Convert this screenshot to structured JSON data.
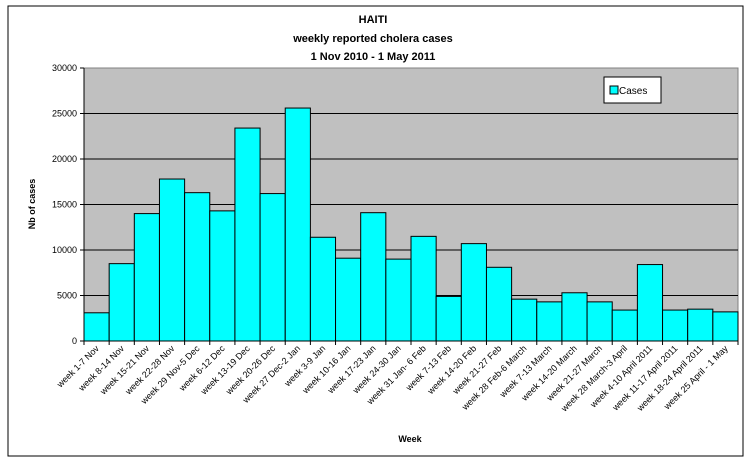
{
  "chart_data": {
    "type": "bar",
    "title": [
      "HAITI",
      "weekly reported cholera cases",
      "1 Nov 2010 - 1 May 2011"
    ],
    "xlabel": "Week",
    "ylabel": "Nb of cases",
    "ylim": [
      0,
      30000
    ],
    "yticks": [
      0,
      5000,
      10000,
      15000,
      20000,
      25000,
      30000
    ],
    "grid": true,
    "plot_background": "#c0c0c0",
    "bar_color": "#00ffff",
    "legend_position": "top-right",
    "categories": [
      "week 1-7 Nov",
      "week 8-14 Nov",
      "week 15-21 Nov",
      "week 22-28 Nov",
      "week 29 Nov-5 Dec",
      "week 6-12 Dec",
      "week 13-19 Dec",
      "week 20-26 Dec",
      "week 27 Dec-2 Jan",
      "week 3-9 Jan",
      "week 10-16 Jan",
      "week 17-23 Jan",
      "week 24-30 Jan",
      "week 31 Jan- 6 Feb",
      "week 7-13 Feb",
      "week 14-20 Feb",
      "week 21-27 Feb",
      "week 28 Feb-6 March",
      "week 7-13 March",
      "week 14-20 March",
      "week 21-27 March",
      "week 28 March-3 April",
      "week 4-10 April 2011",
      "week 11-17 April 2011",
      "week 18-24 April 2011",
      "week 25 April - 1 May"
    ],
    "series": [
      {
        "name": "Cases",
        "values": [
          3100,
          8500,
          14000,
          17800,
          16300,
          14300,
          23400,
          16200,
          25600,
          11400,
          9100,
          14100,
          9000,
          11500,
          4900,
          10700,
          8100,
          4600,
          4300,
          5300,
          4300,
          3400,
          8400,
          3400,
          3500,
          3200
        ]
      }
    ]
  }
}
